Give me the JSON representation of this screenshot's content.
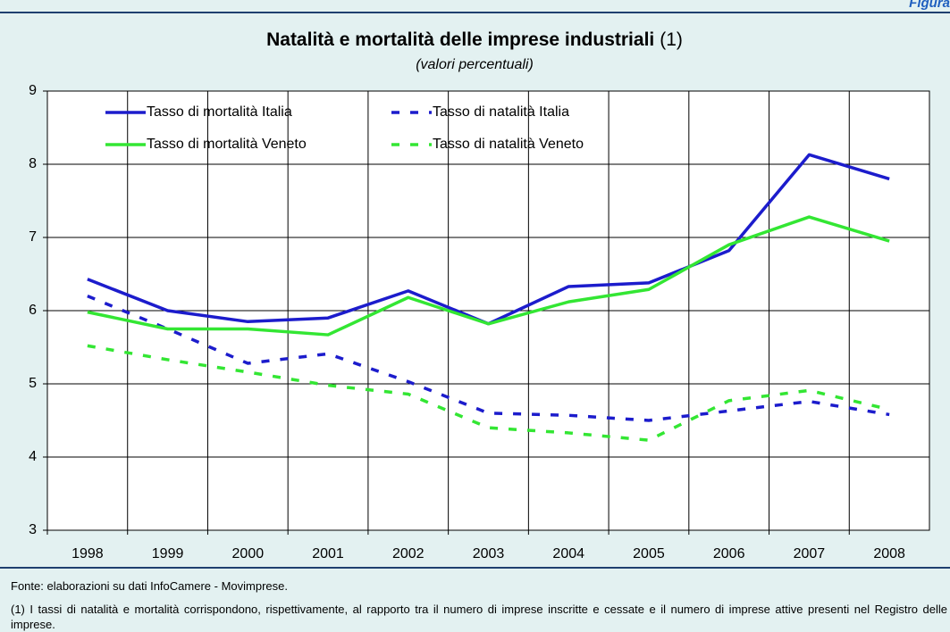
{
  "chart_data": {
    "type": "line",
    "figure_label": "Figura",
    "title": "Natalità e mortalità delle imprese industriali",
    "title_note": "(1)",
    "subtitle": "(valori percentuali)",
    "categories": [
      "1998",
      "1999",
      "2000",
      "2001",
      "2002",
      "2003",
      "2004",
      "2005",
      "2006",
      "2007",
      "2008"
    ],
    "series": [
      {
        "name": "Tasso di mortalità Italia",
        "color": "#1c1ccc",
        "dashed": false,
        "values": [
          6.43,
          6.0,
          5.85,
          5.9,
          6.27,
          5.82,
          6.33,
          6.38,
          6.82,
          8.13,
          7.8
        ]
      },
      {
        "name": "Tasso di natalità Italia",
        "color": "#1c1ccc",
        "dashed": true,
        "values": [
          6.2,
          5.75,
          5.28,
          5.41,
          5.03,
          4.6,
          4.57,
          4.5,
          4.63,
          4.76,
          4.58
        ]
      },
      {
        "name": "Tasso di mortalità Veneto",
        "color": "#33e633",
        "dashed": false,
        "values": [
          5.98,
          5.75,
          5.75,
          5.67,
          6.18,
          5.82,
          6.12,
          6.29,
          6.9,
          7.28,
          6.95
        ]
      },
      {
        "name": "Tasso di natalità Veneto",
        "color": "#33e633",
        "dashed": true,
        "values": [
          5.52,
          5.33,
          5.16,
          4.98,
          4.86,
          4.4,
          4.33,
          4.23,
          4.77,
          4.91,
          4.65
        ]
      }
    ],
    "ylim": [
      3,
      9
    ],
    "yticks": [
      3,
      4,
      5,
      6,
      7,
      8,
      9
    ],
    "grid": true,
    "legend": "upper left",
    "source": "Fonte: elaborazioni su dati InfoCamere - Movimprese.",
    "note": "(1) I tassi di natalità e mortalità corrispondono, rispettivamente, al rapporto tra il numero di imprese inscritte e cessate e il numero di imprese attive presenti nel Registro delle imprese."
  }
}
